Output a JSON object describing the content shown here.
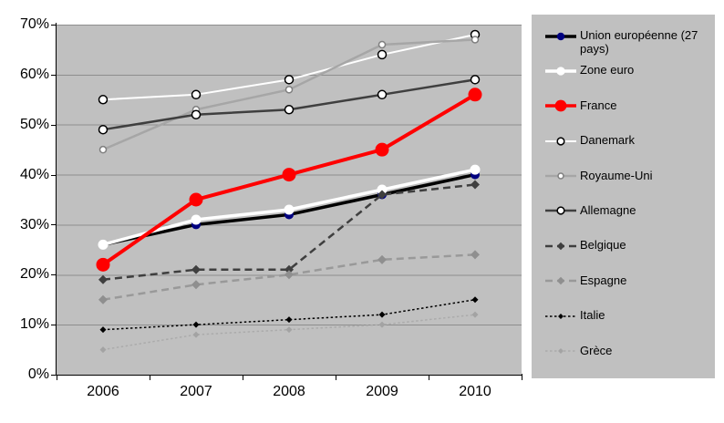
{
  "chart_data": {
    "type": "line",
    "title": "",
    "xlabel": "",
    "ylabel": "",
    "categories": [
      "2006",
      "2007",
      "2008",
      "2009",
      "2010"
    ],
    "ylim": [
      0,
      70
    ],
    "ytick_step": 10,
    "ytick_labels": [
      "0%",
      "10%",
      "20%",
      "30%",
      "40%",
      "50%",
      "60%",
      "70%"
    ],
    "grid": true,
    "legend_position": "right",
    "plot_background": "#c0c0c0",
    "gridline_color": "#8e8e8e",
    "axis_color": "#000000",
    "legend_background": "#c0c0c0",
    "series": [
      {
        "name": "Union européenne (27 pays)",
        "values": [
          26,
          30,
          32,
          36,
          40
        ],
        "color": "#000000",
        "line": "solid",
        "width": 3.5,
        "marker": "circle",
        "marker_fill": "#000080",
        "marker_size": 10
      },
      {
        "name": "Zone euro",
        "values": [
          26,
          31,
          33,
          37,
          41
        ],
        "color": "#ffffff",
        "line": "solid",
        "width": 3.5,
        "marker": "circle",
        "marker_fill": "#ffffff",
        "marker_size": 11
      },
      {
        "name": "France",
        "values": [
          22,
          35,
          40,
          45,
          56
        ],
        "color": "#ff0000",
        "line": "solid",
        "width": 4,
        "marker": "circle",
        "marker_fill": "#ff0000",
        "marker_size": 15
      },
      {
        "name": "Danemark",
        "values": [
          55,
          56,
          59,
          64,
          68
        ],
        "color": "#ffffff",
        "line": "solid",
        "width": 2,
        "marker": "circle-outline",
        "marker_fill": "#ffffff",
        "marker_stroke": "#000000",
        "marker_size": 9
      },
      {
        "name": "Royaume-Uni",
        "values": [
          45,
          53,
          57,
          66,
          67
        ],
        "color": "#a6a6a6",
        "line": "solid",
        "width": 2.5,
        "marker": "circle-outline",
        "marker_fill": "#ffffff",
        "marker_stroke": "#7f7f7f",
        "marker_size": 7
      },
      {
        "name": "Allemagne",
        "values": [
          49,
          52,
          53,
          56,
          59
        ],
        "color": "#3f3f3f",
        "line": "solid",
        "width": 2.5,
        "marker": "circle-outline",
        "marker_fill": "#ffffff",
        "marker_stroke": "#000000",
        "marker_size": 9
      },
      {
        "name": "Belgique",
        "values": [
          19,
          21,
          21,
          36,
          38
        ],
        "color": "#3f3f3f",
        "line": "dashed",
        "width": 2.5,
        "marker": "diamond",
        "marker_fill": "#3f3f3f",
        "marker_size": 10
      },
      {
        "name": "Espagne",
        "values": [
          15,
          18,
          20,
          23,
          24
        ],
        "color": "#999999",
        "line": "dashed",
        "width": 2.5,
        "marker": "diamond",
        "marker_fill": "#8f8f8f",
        "marker_size": 10
      },
      {
        "name": "Italie",
        "values": [
          9,
          10,
          11,
          12,
          15
        ],
        "color": "#000000",
        "line": "dotted",
        "width": 1.5,
        "marker": "diamond",
        "marker_fill": "#000000",
        "marker_size": 7
      },
      {
        "name": "Grèce",
        "values": [
          5,
          8,
          9,
          10,
          12
        ],
        "color": "#ababab",
        "line": "dotted",
        "width": 1.5,
        "marker": "diamond",
        "marker_fill": "#a3a3a3",
        "marker_size": 7
      }
    ]
  }
}
